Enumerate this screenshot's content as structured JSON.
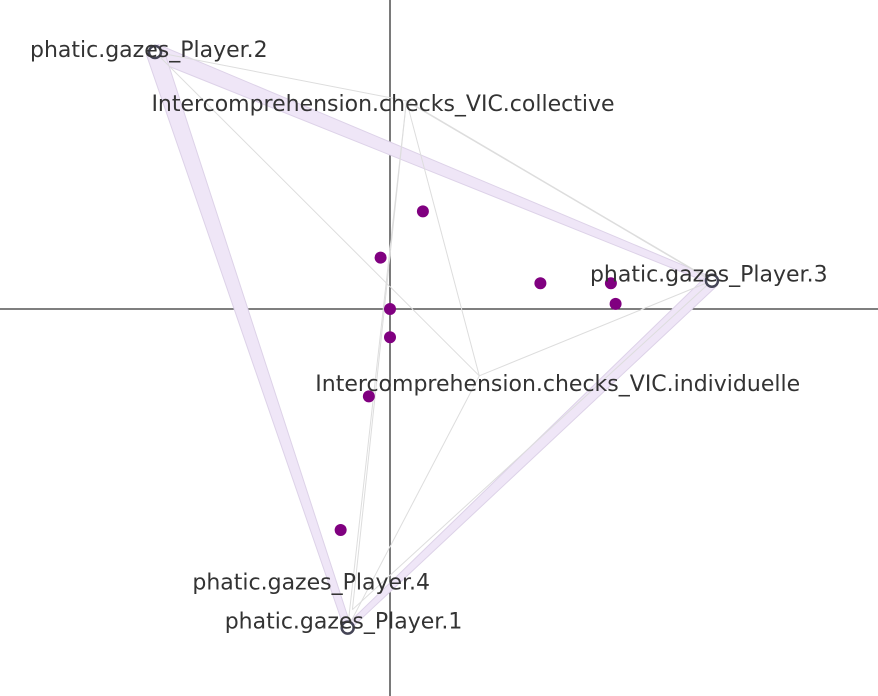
{
  "chart_data": {
    "type": "network",
    "axes": {
      "x_axis_line_at": 0,
      "y_axis_line_at": 0,
      "grid": false,
      "ticks": false
    },
    "nodes": [
      {
        "id": "p2",
        "label": "phatic.gazes_Player.2",
        "x": -1.0,
        "y": 1.0,
        "marker": "open-circle"
      },
      {
        "id": "p3",
        "label": "phatic.gazes_Player.3",
        "x": 1.37,
        "y": 0.11,
        "marker": "open-circle"
      },
      {
        "id": "p1",
        "label": "phatic.gazes_Player.1",
        "x": -0.18,
        "y": -1.24,
        "marker": "open-circle"
      },
      {
        "id": "p4",
        "label": "phatic.gazes_Player.4",
        "x": -0.16,
        "y": -1.17,
        "marker": "none"
      },
      {
        "id": "vc",
        "label": "Intercomprehension.checks_VIC.collective",
        "x": 0.07,
        "y": 0.81,
        "marker": "none"
      },
      {
        "id": "vi",
        "label": "Intercomprehension.checks_VIC.individuelle",
        "x": 0.38,
        "y": -0.26,
        "marker": "none"
      }
    ],
    "edges": [
      {
        "from": "p2",
        "to": "p3",
        "weight": 9
      },
      {
        "from": "p2",
        "to": "p1",
        "weight": 10
      },
      {
        "from": "p3",
        "to": "p1",
        "weight": 8
      },
      {
        "from": "p3",
        "to": "vc",
        "weight": 2
      },
      {
        "from": "p2",
        "to": "vc",
        "weight": 1
      },
      {
        "from": "p2",
        "to": "vi",
        "weight": 1
      },
      {
        "from": "p3",
        "to": "vi",
        "weight": 1
      },
      {
        "from": "vc",
        "to": "vi",
        "weight": 1
      },
      {
        "from": "vc",
        "to": "p1",
        "weight": 1
      },
      {
        "from": "vi",
        "to": "p1",
        "weight": 1
      },
      {
        "from": "p4",
        "to": "vc",
        "weight": 1
      },
      {
        "from": "p4",
        "to": "p3",
        "weight": 1
      }
    ],
    "points": [
      {
        "x": 0.14,
        "y": 0.38
      },
      {
        "x": -0.04,
        "y": 0.2
      },
      {
        "x": 0.0,
        "y": 0.0
      },
      {
        "x": 0.0,
        "y": -0.11
      },
      {
        "x": -0.09,
        "y": -0.34
      },
      {
        "x": -0.21,
        "y": -0.86
      },
      {
        "x": 0.64,
        "y": 0.1
      },
      {
        "x": 0.94,
        "y": 0.1
      },
      {
        "x": 0.96,
        "y": 0.02
      }
    ],
    "colors": {
      "points": "#800080",
      "edge_fill": "#efe6f7",
      "edge_stroke": "#ddd2e8",
      "thin_edge": "#dddddd",
      "node_marker": "#444455",
      "axis": "#333333",
      "label": "#333333"
    }
  }
}
